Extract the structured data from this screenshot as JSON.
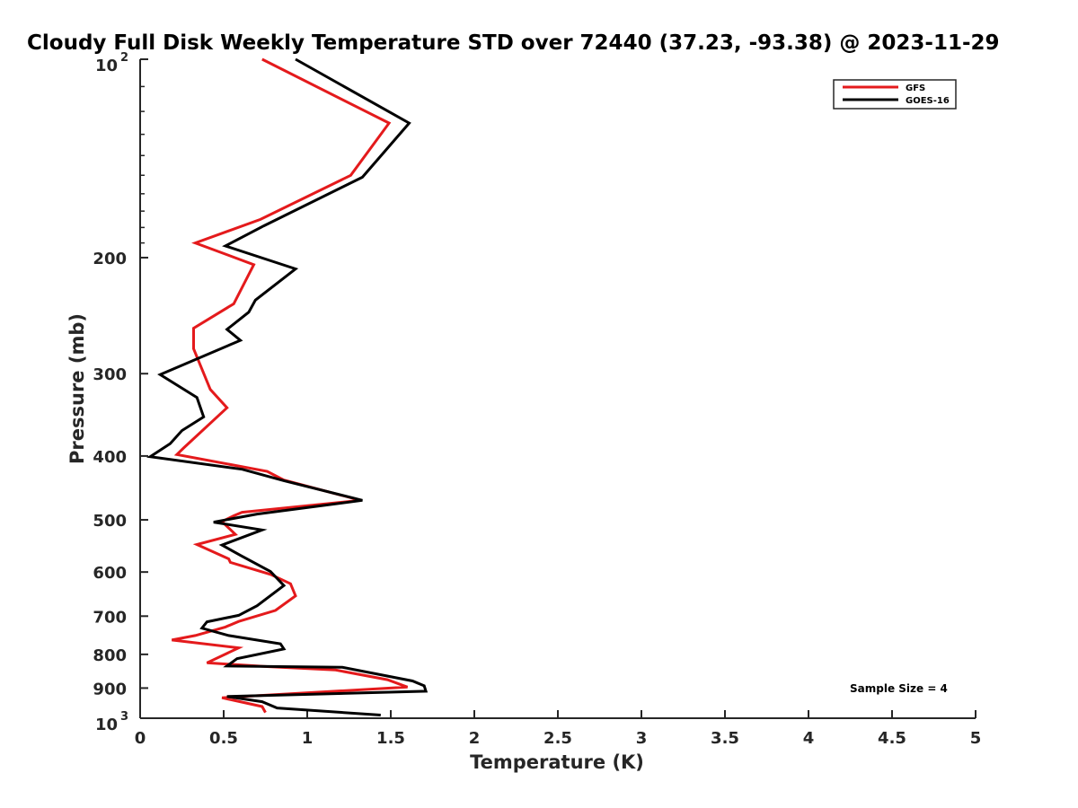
{
  "chart_data": {
    "type": "line",
    "title": "Cloudy Full Disk Weekly Temperature STD over 72440 (37.23, -93.38) @ 2023-11-29",
    "xlabel": "Temperature (K)",
    "ylabel": "Pressure (mb)",
    "xlim": [
      0,
      5
    ],
    "ylim": [
      100,
      1000
    ],
    "y_scale": "log",
    "y_reversed": true,
    "grid": false,
    "legend_position": "top-right",
    "x_ticks": [
      0,
      0.5,
      1,
      1.5,
      2,
      2.5,
      3,
      3.5,
      4,
      4.5,
      5
    ],
    "x_tick_labels": [
      "0",
      "0.5",
      "1",
      "1.5",
      "2",
      "2.5",
      "3",
      "3.5",
      "4",
      "4.5",
      "5"
    ],
    "y_ticks": [
      {
        "value": 100,
        "base": "10",
        "exp": "2"
      },
      {
        "value": 200,
        "label": "200"
      },
      {
        "value": 300,
        "label": "300"
      },
      {
        "value": 400,
        "label": "400"
      },
      {
        "value": 500,
        "label": "500"
      },
      {
        "value": 600,
        "label": "600"
      },
      {
        "value": 700,
        "label": "700"
      },
      {
        "value": 800,
        "label": "800"
      },
      {
        "value": 900,
        "label": "900"
      },
      {
        "value": 1000,
        "base": "10",
        "exp": "3"
      }
    ],
    "annotation": "Sample Size = 4",
    "series": [
      {
        "name": "GFS",
        "color": "#e41a1c",
        "points": [
          [
            0.73,
            100
          ],
          [
            1.49,
            125
          ],
          [
            1.26,
            150
          ],
          [
            0.72,
            175
          ],
          [
            0.33,
            190
          ],
          [
            0.68,
            205
          ],
          [
            0.56,
            235
          ],
          [
            0.32,
            256
          ],
          [
            0.32,
            275
          ],
          [
            0.42,
            317
          ],
          [
            0.52,
            338
          ],
          [
            0.26,
            389
          ],
          [
            0.22,
            398
          ],
          [
            0.76,
            422
          ],
          [
            0.86,
            435
          ],
          [
            1.32,
            467
          ],
          [
            0.61,
            487
          ],
          [
            0.56,
            493
          ],
          [
            0.49,
            503
          ],
          [
            0.57,
            526
          ],
          [
            0.34,
            545
          ],
          [
            0.53,
            573
          ],
          [
            0.54,
            580
          ],
          [
            0.78,
            605
          ],
          [
            0.9,
            625
          ],
          [
            0.93,
            652
          ],
          [
            0.81,
            686
          ],
          [
            0.59,
            713
          ],
          [
            0.51,
            727
          ],
          [
            0.33,
            749
          ],
          [
            0.19,
            761
          ],
          [
            0.59,
            782
          ],
          [
            0.4,
            824
          ],
          [
            0.76,
            835
          ],
          [
            1.17,
            845
          ],
          [
            1.48,
            874
          ],
          [
            1.6,
            897
          ],
          [
            0.49,
            931
          ],
          [
            0.73,
            960
          ],
          [
            0.75,
            980
          ]
        ]
      },
      {
        "name": "GOES-16",
        "color": "#000000",
        "points": [
          [
            0.93,
            100
          ],
          [
            1.61,
            125
          ],
          [
            1.33,
            151
          ],
          [
            0.74,
            179
          ],
          [
            0.51,
            192
          ],
          [
            0.93,
            208
          ],
          [
            0.69,
            232
          ],
          [
            0.65,
            242
          ],
          [
            0.52,
            257
          ],
          [
            0.6,
            267
          ],
          [
            0.12,
            301
          ],
          [
            0.34,
            326
          ],
          [
            0.38,
            349
          ],
          [
            0.25,
            366
          ],
          [
            0.18,
            383
          ],
          [
            0.06,
            401
          ],
          [
            0.61,
            419
          ],
          [
            0.86,
            436
          ],
          [
            1.33,
            467
          ],
          [
            0.7,
            490
          ],
          [
            0.44,
            504
          ],
          [
            0.73,
            518
          ],
          [
            0.49,
            546
          ],
          [
            0.6,
            566
          ],
          [
            0.78,
            599
          ],
          [
            0.86,
            629
          ],
          [
            0.7,
            675
          ],
          [
            0.59,
            698
          ],
          [
            0.4,
            714
          ],
          [
            0.37,
            730
          ],
          [
            0.53,
            749
          ],
          [
            0.84,
            771
          ],
          [
            0.86,
            785
          ],
          [
            0.58,
            812
          ],
          [
            0.52,
            833
          ],
          [
            1.21,
            837
          ],
          [
            1.63,
            878
          ],
          [
            1.7,
            893
          ],
          [
            1.71,
            910
          ],
          [
            0.52,
            927
          ],
          [
            0.73,
            944
          ],
          [
            0.82,
            965
          ],
          [
            1.44,
            989
          ]
        ]
      }
    ]
  }
}
